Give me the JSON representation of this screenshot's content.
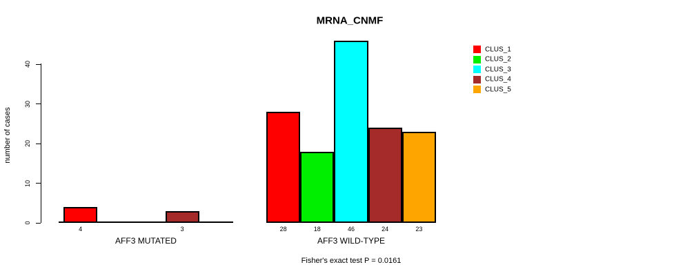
{
  "chart_data": {
    "type": "bar",
    "title": "MRNA_CNMF",
    "ylabel": "number of cases",
    "xlabel": "",
    "annotation": "Fisher's exact test P = 0.0161",
    "yticks": [
      0,
      10,
      20,
      30,
      40
    ],
    "ylim": [
      0,
      46
    ],
    "grid": false,
    "legend_position": "top-right",
    "categories": [
      "AFF3 MUTATED",
      "AFF3 WILD-TYPE"
    ],
    "series": [
      {
        "name": "CLUS_1",
        "color": "#FF0000",
        "values": [
          4,
          28
        ]
      },
      {
        "name": "CLUS_2",
        "color": "#00EE00",
        "values": [
          0,
          18
        ]
      },
      {
        "name": "CLUS_3",
        "color": "#00FFFF",
        "values": [
          0,
          46
        ]
      },
      {
        "name": "CLUS_4",
        "color": "#A52A2A",
        "values": [
          3,
          24
        ]
      },
      {
        "name": "CLUS_5",
        "color": "#FFA500",
        "values": [
          0,
          23
        ]
      }
    ],
    "visible_bar_value_labels": [
      "4",
      "3",
      "28",
      "18",
      "46",
      "24",
      "23"
    ],
    "axis_color": "#000000",
    "background_color": "#FFFFFF"
  }
}
